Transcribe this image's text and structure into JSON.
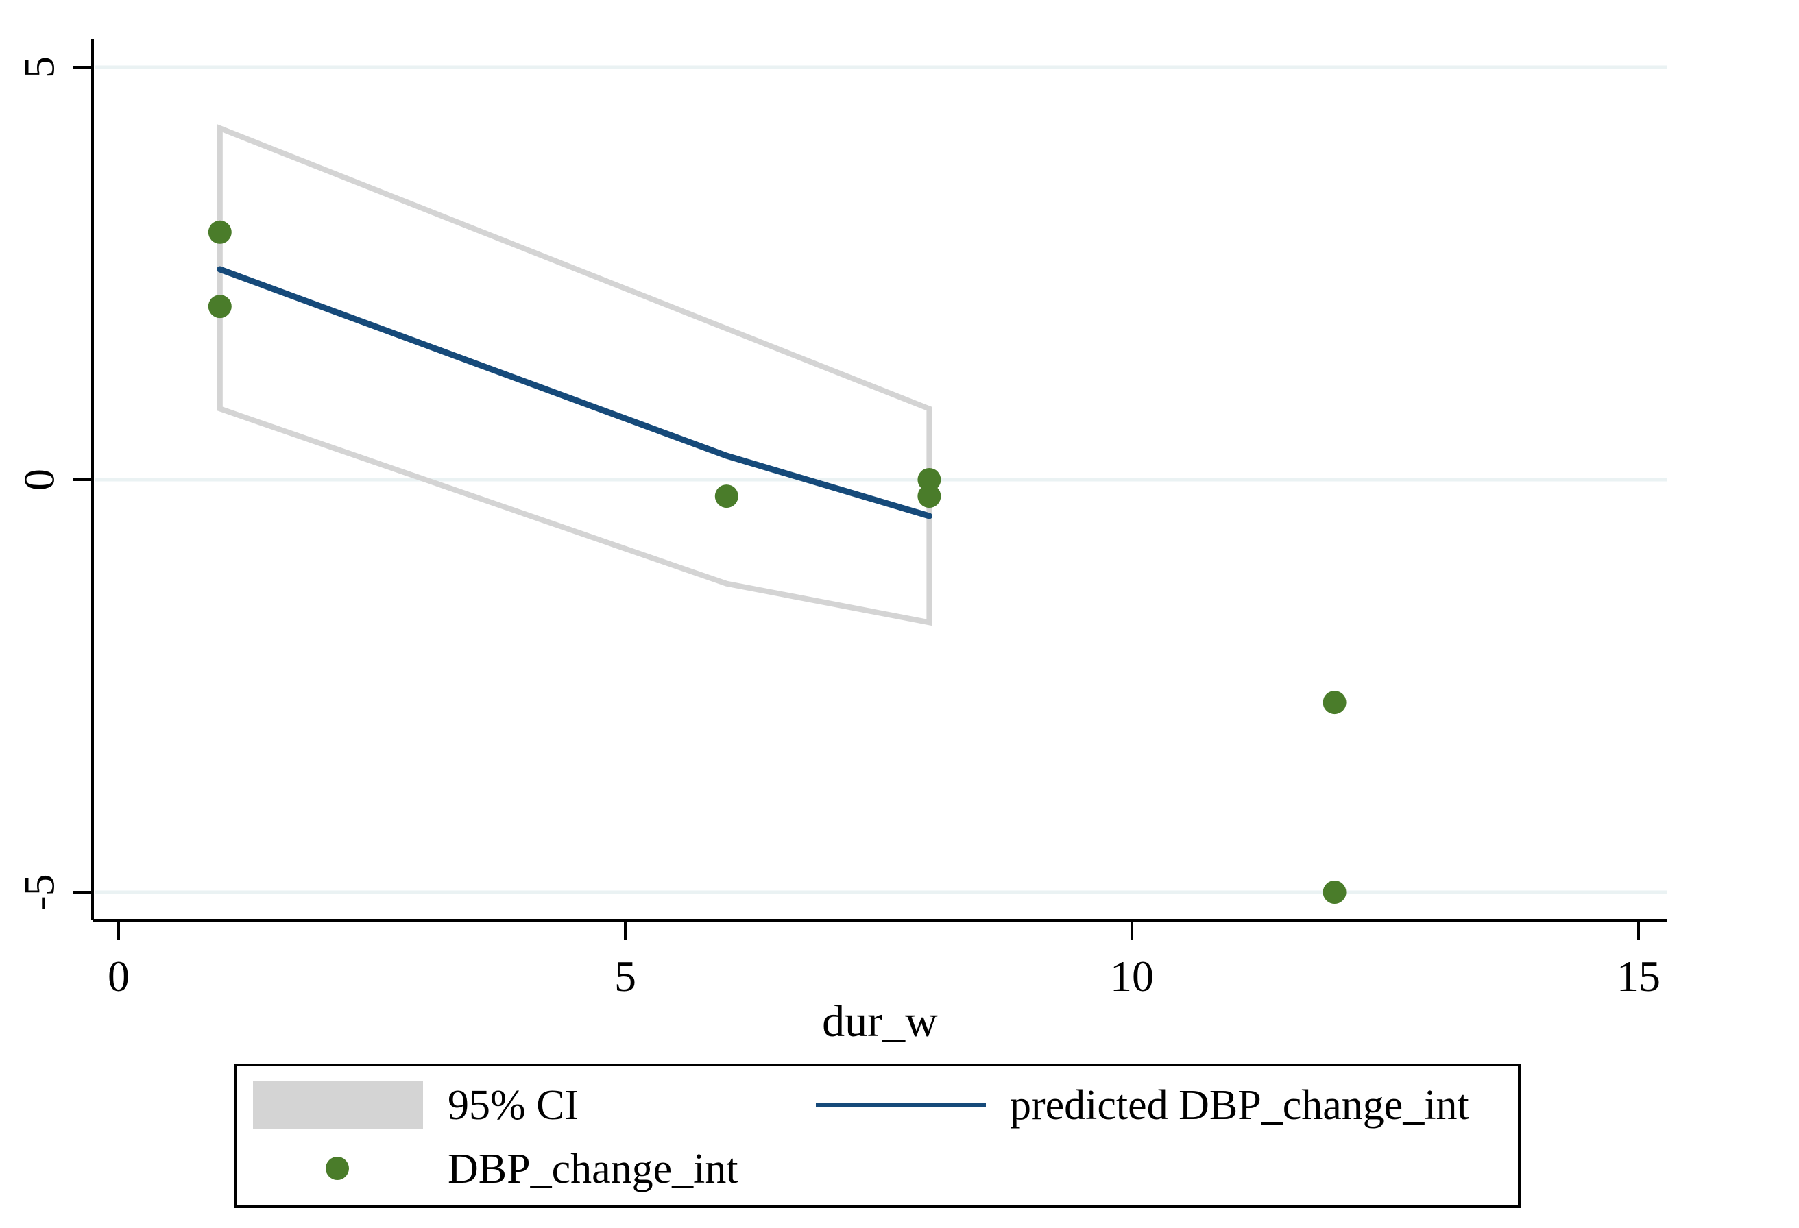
{
  "figure": {
    "background": "#ffffff"
  },
  "chart_data": {
    "type": "scatter",
    "title": "",
    "xlabel": "dur_w",
    "ylabel": "",
    "xlim": [
      -0.26,
      15.28
    ],
    "ylim": [
      -5.34,
      5.34
    ],
    "x_ticks": [
      0,
      5,
      10,
      15
    ],
    "y_ticks": [
      5,
      0,
      -5
    ],
    "grid": "horizontal-only",
    "legend_position": "bottom",
    "series": [
      {
        "name": "95% CI",
        "type": "band-outline",
        "color": "#d4d4d4",
        "polygon": [
          [
            1,
            4.26
          ],
          [
            8,
            0.86
          ],
          [
            8,
            -1.73
          ],
          [
            6,
            -1.26
          ],
          [
            1,
            0.86
          ]
        ]
      },
      {
        "name": "predicted DBP_change_int",
        "type": "line",
        "color": "#164a7a",
        "points": [
          [
            1,
            2.55
          ],
          [
            6,
            0.29
          ],
          [
            8,
            -0.44
          ]
        ]
      },
      {
        "name": "DBP_change_int",
        "type": "scatter",
        "color": "#4a7c2a",
        "points": [
          [
            1,
            3.0
          ],
          [
            1,
            2.1
          ],
          [
            6,
            -0.2
          ],
          [
            8,
            0.0
          ],
          [
            8,
            -0.2
          ],
          [
            12,
            -2.7
          ],
          [
            12,
            -5.0
          ]
        ]
      }
    ]
  },
  "axes": {
    "x_tick_labels": [
      "0",
      "5",
      "10",
      "15"
    ],
    "y_tick_labels": [
      "5",
      "0",
      "-5"
    ],
    "x_title": "dur_w"
  },
  "legend": {
    "items": [
      {
        "label": "95% CI",
        "swatch": "area",
        "color": "#d4d4d4"
      },
      {
        "label": "predicted DBP_change_int",
        "swatch": "line",
        "color": "#164a7a"
      },
      {
        "label": "DBP_change_int",
        "swatch": "marker",
        "color": "#4a7c2a"
      }
    ]
  },
  "colors": {
    "background": "#ffffff",
    "axis": "#000000",
    "gridline": "#eaf2f3",
    "ci_outline": "#d4d4d4",
    "predicted_line": "#164a7a",
    "marker": "#4a7c2a",
    "text": "#000000"
  }
}
